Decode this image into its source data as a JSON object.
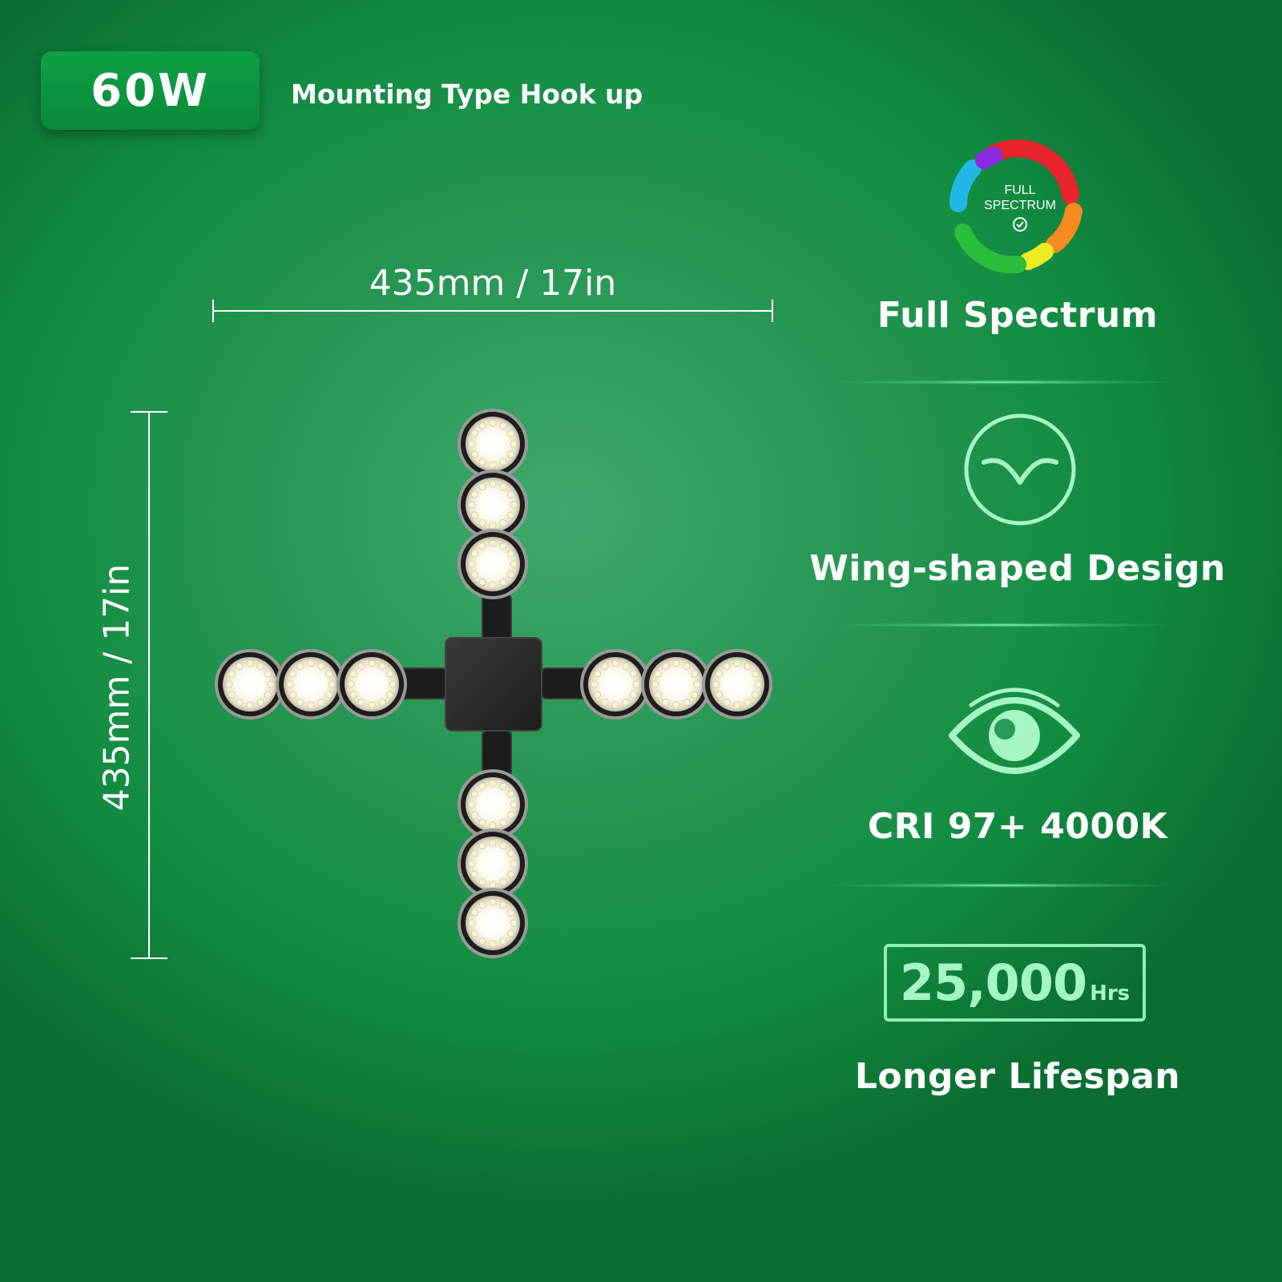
{
  "header": {
    "wattage": "60W",
    "mounting": "Mounting Type Hook up"
  },
  "dimensions": {
    "width_label": "435mm / 17in",
    "height_label": "435mm / 17in"
  },
  "features": [
    {
      "icon": "full-spectrum-ring-icon",
      "icon_text_1": "FULL",
      "icon_text_2": "SPECTRUM",
      "label": "Full Spectrum"
    },
    {
      "icon": "wing-shape-icon",
      "label": "Wing-shaped Design"
    },
    {
      "icon": "eye-icon",
      "label": "CRI 97+ 4000K"
    },
    {
      "icon": "lifespan-box",
      "value": "25,000",
      "unit": "Hrs",
      "label": "Longer Lifespan"
    }
  ],
  "colors": {
    "background": "#1f9a52",
    "accent_mint": "#a6f6c4",
    "spectrum": [
      "#e8242c",
      "#f58a1f",
      "#ecec22",
      "#2bbd3c",
      "#22b8e6",
      "#8a2be2"
    ]
  }
}
